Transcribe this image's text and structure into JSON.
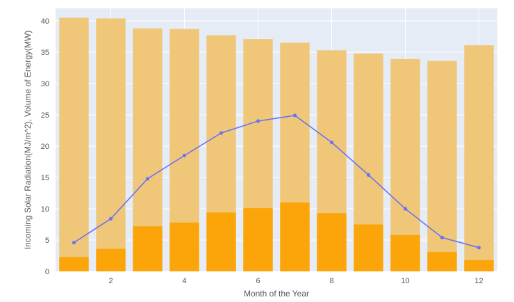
{
  "chart_data": {
    "type": "bar",
    "xlabel": "Month of the Year",
    "ylabel": "Incoming Solar Radiation(MJ/m^2), Volume of Energy(MW)",
    "ylim": [
      0,
      42
    ],
    "y_ticks": [
      0,
      5,
      10,
      15,
      20,
      25,
      30,
      35,
      40
    ],
    "x_ticks": [
      2,
      4,
      6,
      8,
      10,
      12
    ],
    "x": [
      1,
      2,
      3,
      4,
      5,
      6,
      7,
      8,
      9,
      10,
      11,
      12
    ],
    "grid": true,
    "barmode": "overlay",
    "series": [
      {
        "type": "bar",
        "color": "#f0c779",
        "values": [
          40.5,
          40.4,
          38.8,
          38.7,
          37.7,
          37.1,
          36.5,
          35.3,
          34.8,
          33.9,
          33.6,
          36.1
        ]
      },
      {
        "type": "bar",
        "color": "#fca50a",
        "values": [
          2.3,
          3.6,
          7.2,
          7.8,
          9.4,
          10.1,
          11.0,
          9.3,
          7.5,
          5.8,
          3.1,
          1.8
        ]
      },
      {
        "type": "line",
        "color": "#6a73f0",
        "values": [
          4.6,
          8.4,
          14.8,
          18.5,
          22.1,
          24.0,
          24.9,
          20.6,
          15.4,
          10.0,
          5.4,
          3.8
        ]
      }
    ]
  }
}
